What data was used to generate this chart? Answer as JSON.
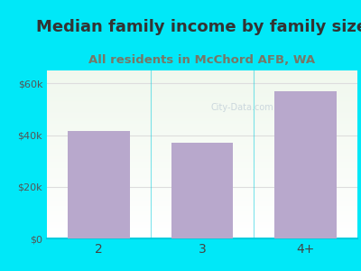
{
  "title": "Median family income by family size",
  "subtitle": "All residents in McChord AFB, WA",
  "categories": [
    "2",
    "3",
    "4+"
  ],
  "values": [
    41500,
    37000,
    57000
  ],
  "bar_color": "#b8a8cc",
  "title_fontsize": 13,
  "subtitle_fontsize": 9.5,
  "title_color": "#333333",
  "subtitle_color": "#777766",
  "ylim": [
    0,
    65000
  ],
  "yticks": [
    0,
    20000,
    40000,
    60000
  ],
  "ytick_labels": [
    "$0",
    "$20k",
    "$40k",
    "$60k"
  ],
  "background_outer": "#00e8f8",
  "grid_color": "#dddddd",
  "axis_color": "#00ccdd",
  "watermark": "City-Data.com",
  "watermark_color": "#aabbcc",
  "xtick_fontsize": 10,
  "ytick_fontsize": 8
}
